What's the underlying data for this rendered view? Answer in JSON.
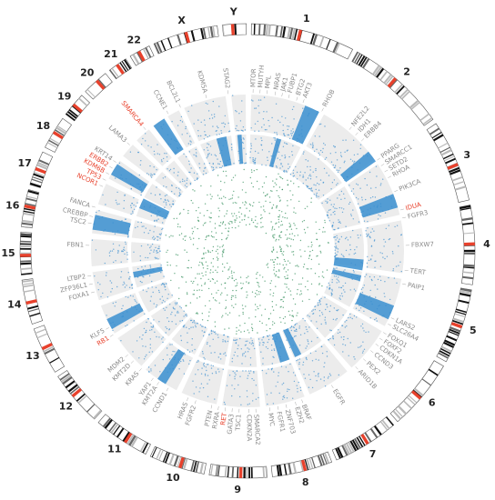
{
  "chromosomes": [
    "1",
    "2",
    "3",
    "4",
    "5",
    "6",
    "7",
    "8",
    "9",
    "10",
    "11",
    "12",
    "13",
    "14",
    "15",
    "16",
    "17",
    "18",
    "19",
    "20",
    "21",
    "22",
    "X",
    "Y"
  ],
  "genes": [
    {
      "label": "MTOR",
      "color": "#8a8a8a"
    },
    {
      "label": "MUTYH",
      "color": "#8a8a8a"
    },
    {
      "label": "MPL",
      "color": "#8a8a8a"
    },
    {
      "label": "NRAS",
      "color": "#8a8a8a"
    },
    {
      "label": "JAK1",
      "color": "#8a8a8a"
    },
    {
      "label": "FUBP1",
      "color": "#8a8a8a"
    },
    {
      "label": "BTG2",
      "color": "#8a8a8a"
    },
    {
      "label": "AKT3",
      "color": "#8a8a8a"
    },
    {
      "label": "RHOB",
      "color": "#8a8a8a"
    },
    {
      "label": "NFE2L2",
      "color": "#8a8a8a"
    },
    {
      "label": "IDH1",
      "color": "#8a8a8a"
    },
    {
      "label": "ERBB4",
      "color": "#8a8a8a"
    },
    {
      "label": "PPARG",
      "color": "#8a8a8a"
    },
    {
      "label": "SMARCC1",
      "color": "#8a8a8a"
    },
    {
      "label": "SETD2",
      "color": "#8a8a8a"
    },
    {
      "label": "RHOA",
      "color": "#8a8a8a"
    },
    {
      "label": "PIK3CA",
      "color": "#8a8a8a"
    },
    {
      "label": "IDUA",
      "color": "#e8412c"
    },
    {
      "label": "FGFR3",
      "color": "#8a8a8a"
    },
    {
      "label": "FBXW7",
      "color": "#8a8a8a"
    },
    {
      "label": "TERT",
      "color": "#8a8a8a"
    },
    {
      "label": "PAIP1",
      "color": "#8a8a8a"
    },
    {
      "label": "LARS2",
      "color": "#8a8a8a"
    },
    {
      "label": "SLC26A4",
      "color": "#8a8a8a"
    },
    {
      "label": "FOXQ1",
      "color": "#8a8a8a"
    },
    {
      "label": "FOXF2",
      "color": "#8a8a8a"
    },
    {
      "label": "CDKN1A",
      "color": "#8a8a8a"
    },
    {
      "label": "CCND3",
      "color": "#8a8a8a"
    },
    {
      "label": "PEX2",
      "color": "#8a8a8a"
    },
    {
      "label": "ARID1B",
      "color": "#8a8a8a"
    },
    {
      "label": "EGFR",
      "color": "#8a8a8a"
    },
    {
      "label": "BRAF",
      "color": "#8a8a8a"
    },
    {
      "label": "EZH2",
      "color": "#8a8a8a"
    },
    {
      "label": "ZNF703",
      "color": "#8a8a8a"
    },
    {
      "label": "FGFR1",
      "color": "#8a8a8a"
    },
    {
      "label": "MYC",
      "color": "#8a8a8a"
    },
    {
      "label": "SMARCA2",
      "color": "#8a8a8a"
    },
    {
      "label": "CDKN2A",
      "color": "#8a8a8a"
    },
    {
      "label": "TSC1",
      "color": "#8a8a8a"
    },
    {
      "label": "GATA3",
      "color": "#8a8a8a"
    },
    {
      "label": "RET",
      "color": "#e8412c"
    },
    {
      "label": "RXRA",
      "color": "#8a8a8a"
    },
    {
      "label": "PTEN",
      "color": "#8a8a8a"
    },
    {
      "label": "FGFR2",
      "color": "#8a8a8a"
    },
    {
      "label": "HRAS",
      "color": "#8a8a8a"
    },
    {
      "label": "CCND1",
      "color": "#8a8a8a"
    },
    {
      "label": "KMT2A",
      "color": "#8a8a8a"
    },
    {
      "label": "YAP1",
      "color": "#8a8a8a"
    },
    {
      "label": "KRAS",
      "color": "#8a8a8a"
    },
    {
      "label": "KMT2D",
      "color": "#8a8a8a"
    },
    {
      "label": "MDM2",
      "color": "#8a8a8a"
    },
    {
      "label": "RB1",
      "color": "#e8412c"
    },
    {
      "label": "KLF5",
      "color": "#8a8a8a"
    },
    {
      "label": "FOXA1",
      "color": "#8a8a8a"
    },
    {
      "label": "ZFP36L1",
      "color": "#8a8a8a"
    },
    {
      "label": "LTBP2",
      "color": "#8a8a8a"
    },
    {
      "label": "FBN1",
      "color": "#8a8a8a"
    },
    {
      "label": "TSC2",
      "color": "#8a8a8a"
    },
    {
      "label": "CREBBP",
      "color": "#8a8a8a"
    },
    {
      "label": "FANCA",
      "color": "#8a8a8a"
    },
    {
      "label": "NCOR1",
      "color": "#e8412c"
    },
    {
      "label": "TP53",
      "color": "#e8412c"
    },
    {
      "label": "KDM6B",
      "color": "#e8412c"
    },
    {
      "label": "ERBB2",
      "color": "#e8412c"
    },
    {
      "label": "KRT14",
      "color": "#8a8a8a"
    },
    {
      "label": "LAMA3",
      "color": "#8a8a8a"
    },
    {
      "label": "SMARCA4",
      "color": "#e8412c"
    },
    {
      "label": "CCNE1",
      "color": "#8a8a8a"
    },
    {
      "label": "BCL2L1",
      "color": "#8a8a8a"
    },
    {
      "label": "KDM5A",
      "color": "#8a8a8a"
    },
    {
      "label": "STAG2",
      "color": "#8a8a8a"
    }
  ]
}
